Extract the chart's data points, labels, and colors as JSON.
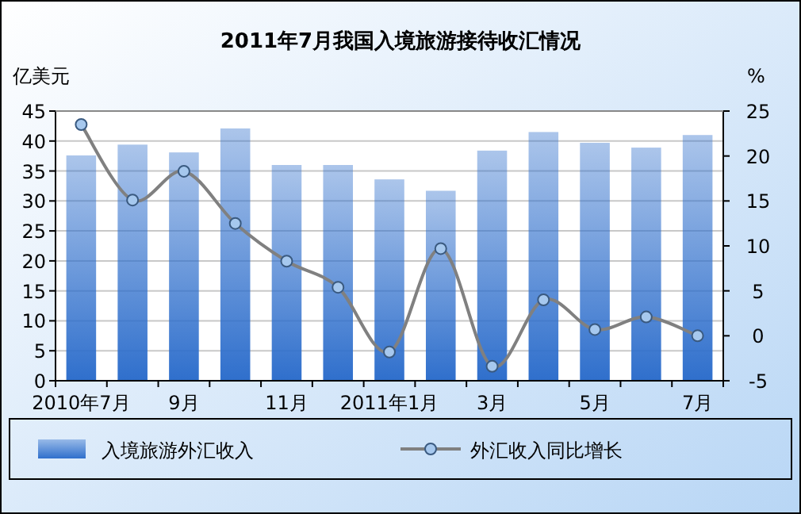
{
  "chart_data": {
    "type": "bar",
    "title": "2011年7月我国入境旅游接待收汇情况",
    "ylabel": "亿美元",
    "y2label": "%",
    "categories": [
      "2010年7月",
      null,
      "9月",
      null,
      "11月",
      null,
      "2011年1月",
      null,
      "3月",
      null,
      "5月",
      null,
      "7月"
    ],
    "series": [
      {
        "name": "入境旅游外汇收入",
        "color": "#2f6fcc",
        "values": [
          37.6,
          39.4,
          38.1,
          42.1,
          36.0,
          36.0,
          33.6,
          31.7,
          38.4,
          41.5,
          39.7,
          38.9,
          41.0
        ]
      },
      {
        "name": "外汇收入同比增长",
        "type": "line",
        "axis": "y2",
        "color": "#808080",
        "marker": "circle",
        "values": [
          23.5,
          15.1,
          18.3,
          12.5,
          8.3,
          5.4,
          -1.8,
          9.7,
          -3.4,
          4.0,
          0.7,
          2.1,
          0.0
        ]
      }
    ],
    "ylim": [
      0,
      45
    ],
    "yticks": [
      0,
      5,
      10,
      15,
      20,
      25,
      30,
      35,
      40,
      45
    ],
    "y2lim": [
      -5,
      25
    ],
    "y2ticks": [
      -5,
      0,
      5,
      10,
      15,
      20,
      25
    ],
    "grid": "y",
    "legend": "bottom"
  }
}
